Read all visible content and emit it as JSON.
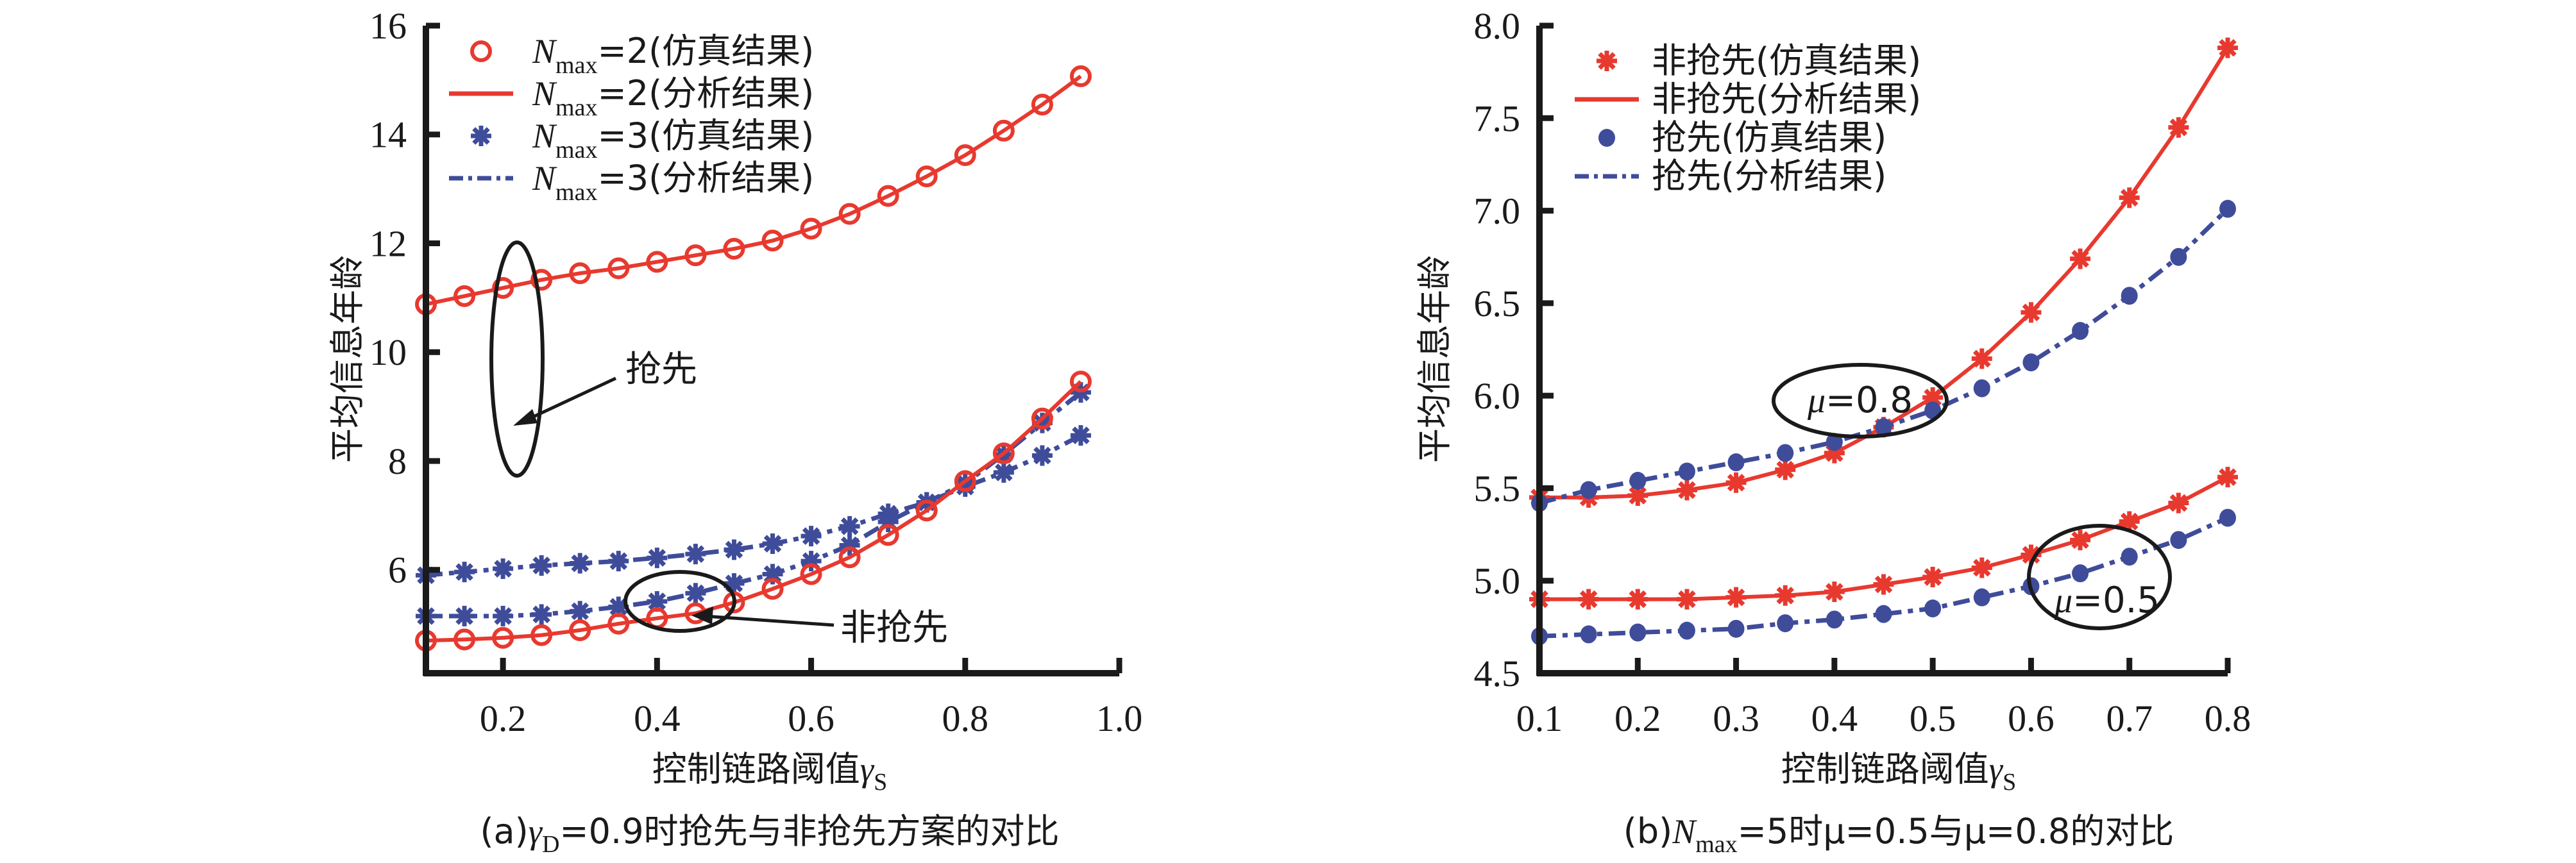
{
  "chart_data": [
    {
      "id": "a",
      "type": "line",
      "caption": {
        "prefix": "(a)",
        "sym": "γ",
        "sub": "D",
        "rest": "=0.9时抢先与非抢先方案的对比"
      },
      "xlabel": {
        "text": "控制链路阈值",
        "sym": "γ",
        "sub": "S"
      },
      "ylabel": "平均信息年龄",
      "xlim": [
        0.1,
        1.0
      ],
      "ylim": [
        4.1,
        16
      ],
      "xticks": [
        0.2,
        0.4,
        0.6,
        0.8,
        1.0
      ],
      "xtick_labels": [
        "0.2",
        "0.4",
        "0.6",
        "0.8",
        "1.0"
      ],
      "yticks": [
        6,
        8,
        10,
        12,
        14,
        16
      ],
      "ytick_labels": [
        "6",
        "8",
        "10",
        "12",
        "14",
        "16"
      ],
      "grid": false,
      "legend_position": "top-left",
      "x": [
        0.1,
        0.15,
        0.2,
        0.25,
        0.3,
        0.35,
        0.4,
        0.45,
        0.5,
        0.55,
        0.6,
        0.65,
        0.7,
        0.75,
        0.8,
        0.85,
        0.9,
        0.95
      ],
      "legend": [
        {
          "label_pre": "N",
          "label_sub": "max",
          "label_post": "=2(仿真结果)",
          "marker": "circle",
          "color": "#e8392f"
        },
        {
          "label_pre": "N",
          "label_sub": "max",
          "label_post": "=2(分析结果)",
          "line": "solid",
          "color": "#e8392f"
        },
        {
          "label_pre": "N",
          "label_sub": "max",
          "label_post": "=3(仿真结果)",
          "marker": "star",
          "color": "#3f4c9a"
        },
        {
          "label_pre": "N",
          "label_sub": "max",
          "label_post": "=3(分析结果)",
          "line": "dashdot",
          "color": "#3f4c9a"
        }
      ],
      "series": [
        {
          "name": "Nmax=2 抢先",
          "color": "#e8392f",
          "marker": "circle",
          "line": "solid",
          "values": [
            10.88,
            11.03,
            11.18,
            11.33,
            11.45,
            11.54,
            11.66,
            11.78,
            11.9,
            12.05,
            12.27,
            12.54,
            12.87,
            13.23,
            13.62,
            14.07,
            14.55,
            15.07
          ]
        },
        {
          "name": "Nmax=3 抢先",
          "color": "#3f4c9a",
          "marker": "star",
          "line": "dashdot",
          "values": [
            5.9,
            5.96,
            6.02,
            6.08,
            6.12,
            6.16,
            6.22,
            6.29,
            6.37,
            6.48,
            6.62,
            6.8,
            7.03,
            7.24,
            7.53,
            7.79,
            8.1,
            8.47
          ]
        },
        {
          "name": "Nmax=3 非抢先",
          "color": "#3f4c9a",
          "marker": "star",
          "line": "dashdot",
          "values": [
            5.15,
            5.15,
            5.15,
            5.18,
            5.24,
            5.32,
            5.42,
            5.57,
            5.75,
            5.92,
            6.16,
            6.45,
            6.88,
            7.24,
            7.59,
            8.12,
            8.7,
            9.26
          ]
        },
        {
          "name": "Nmax=2 非抢先",
          "color": "#e8392f",
          "marker": "circle",
          "line": "solid",
          "values": [
            4.7,
            4.72,
            4.75,
            4.8,
            4.89,
            5.01,
            5.11,
            5.2,
            5.4,
            5.65,
            5.92,
            6.23,
            6.64,
            7.09,
            7.63,
            8.14,
            8.78,
            9.46
          ]
        }
      ],
      "annotations": [
        {
          "text": "抢先",
          "target": "ellipse around preemptive curves at x≈0.2"
        },
        {
          "text": "非抢先",
          "target": "ellipse around non-preemptive curves at x≈0.45"
        }
      ]
    },
    {
      "id": "b",
      "type": "line",
      "caption": {
        "prefix": "(b)",
        "sym": "N",
        "sub": "max",
        "rest": "=5时μ=0.5与μ=0.8的对比"
      },
      "xlabel": {
        "text": "控制链路阈值",
        "sym": "γ",
        "sub": "S"
      },
      "ylabel": "平均信息年龄",
      "xlim": [
        0.1,
        0.8
      ],
      "ylim": [
        4.5,
        8.0
      ],
      "xticks": [
        0.1,
        0.2,
        0.3,
        0.4,
        0.5,
        0.6,
        0.7,
        0.8
      ],
      "xtick_labels": [
        "0.1",
        "0.2",
        "0.3",
        "0.4",
        "0.5",
        "0.6",
        "0.7",
        "0.8"
      ],
      "yticks": [
        4.5,
        5.0,
        5.5,
        6.0,
        6.5,
        7.0,
        7.5,
        8.0
      ],
      "ytick_labels": [
        "4.5",
        "5.0",
        "5.5",
        "6.0",
        "6.5",
        "7.0",
        "7.5",
        "8.0"
      ],
      "grid": false,
      "legend_position": "top-left",
      "x": [
        0.1,
        0.15,
        0.2,
        0.25,
        0.3,
        0.35,
        0.4,
        0.45,
        0.5,
        0.55,
        0.6,
        0.65,
        0.7,
        0.75,
        0.8
      ],
      "legend": [
        {
          "label": "非抢先(仿真结果)",
          "marker": "star",
          "color": "#e8392f"
        },
        {
          "label": "非抢先(分析结果)",
          "line": "solid",
          "color": "#e8392f"
        },
        {
          "label": "抢先(仿真结果)",
          "marker": "dot",
          "color": "#3f4c9a"
        },
        {
          "label": "抢先(分析结果)",
          "line": "dashdot",
          "color": "#3f4c9a"
        }
      ],
      "series": [
        {
          "name": "μ=0.8 非抢先",
          "color": "#e8392f",
          "marker": "star",
          "line": "solid",
          "values": [
            5.45,
            5.45,
            5.46,
            5.49,
            5.53,
            5.6,
            5.69,
            5.83,
            5.99,
            6.2,
            6.45,
            6.74,
            7.07,
            7.45,
            7.88
          ]
        },
        {
          "name": "μ=0.8 抢先",
          "color": "#3f4c9a",
          "marker": "dot",
          "line": "dashdot",
          "values": [
            5.42,
            5.49,
            5.54,
            5.59,
            5.64,
            5.69,
            5.75,
            5.83,
            5.92,
            6.04,
            6.18,
            6.35,
            6.54,
            6.75,
            7.01
          ]
        },
        {
          "name": "μ=0.5 非抢先",
          "color": "#e8392f",
          "marker": "star",
          "line": "solid",
          "values": [
            4.9,
            4.9,
            4.9,
            4.9,
            4.91,
            4.92,
            4.94,
            4.98,
            5.02,
            5.07,
            5.14,
            5.22,
            5.32,
            5.42,
            5.56
          ]
        },
        {
          "name": "μ=0.5 抢先",
          "color": "#3f4c9a",
          "marker": "dot",
          "line": "dashdot",
          "values": [
            4.7,
            4.71,
            4.72,
            4.73,
            4.74,
            4.77,
            4.79,
            4.82,
            4.85,
            4.91,
            4.97,
            5.04,
            5.13,
            5.22,
            5.34
          ]
        }
      ],
      "annotations": [
        {
          "sym": "μ",
          "text": "=0.8"
        },
        {
          "sym": "μ",
          "text": "=0.5"
        }
      ]
    }
  ]
}
